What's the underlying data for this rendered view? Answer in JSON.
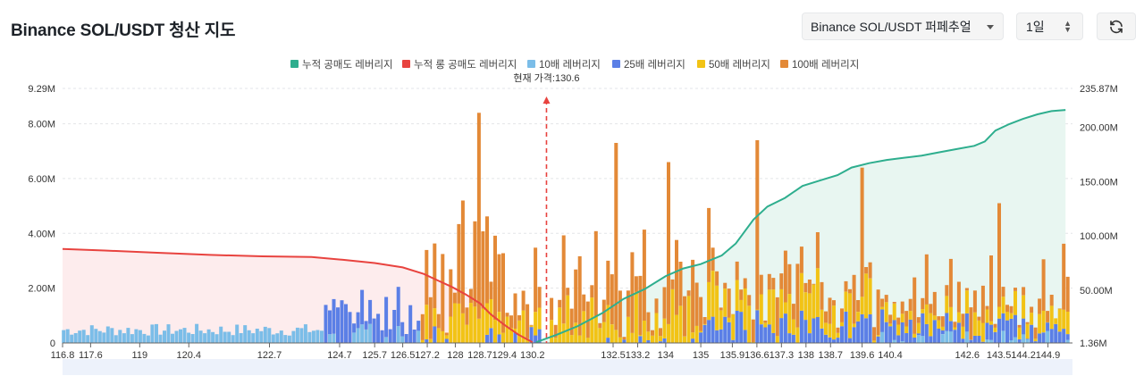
{
  "header": {
    "title": "Binance SOL/USDT 청산 지도",
    "pair_select": "Binance SOL/USDT 퍼페추얼",
    "range_select": "1일",
    "refresh_icon": "refresh-icon"
  },
  "colors": {
    "short_cum": "#2eae8e",
    "long_cum": "#e8433f",
    "lev10": "#7bbde8",
    "lev25": "#5b7fe6",
    "lev50": "#f2c315",
    "lev100": "#e38937",
    "short_area": "#e8f6f1",
    "long_area": "#fdeced"
  },
  "chart_data": {
    "type": "bar",
    "title": "Binance SOL/USDT 청산 지도",
    "legend": [
      {
        "key": "short_cum",
        "label": "누적 공매도 레버리지"
      },
      {
        "key": "long_cum",
        "label": "누적 롱 공매도 레버리지"
      },
      {
        "key": "lev10",
        "label": "10배 레버리지"
      },
      {
        "key": "lev25",
        "label": "25배 레버리지"
      },
      {
        "key": "lev50",
        "label": "50배 레버리지"
      },
      {
        "key": "lev100",
        "label": "100배 레버리지"
      }
    ],
    "current_price_label": "현재 가격:130.6",
    "current_price": 130.6,
    "left_axis": {
      "ylim": [
        0,
        9.29
      ],
      "unit": "M",
      "ticks": [
        {
          "v": 0,
          "label": "0"
        },
        {
          "v": 2,
          "label": "2.00M"
        },
        {
          "v": 4,
          "label": "4.00M"
        },
        {
          "v": 6,
          "label": "6.00M"
        },
        {
          "v": 8,
          "label": "8.00M"
        },
        {
          "v": 9.29,
          "label": "9.29M"
        }
      ]
    },
    "right_axis": {
      "ylim": [
        1.36,
        235.87
      ],
      "unit": "M",
      "ticks": [
        {
          "v": 1.36,
          "label": "1.36M"
        },
        {
          "v": 50,
          "label": "50.00M"
        },
        {
          "v": 100,
          "label": "100.00M"
        },
        {
          "v": 150,
          "label": "150.00M"
        },
        {
          "v": 200,
          "label": "200.00M"
        },
        {
          "v": 235.87,
          "label": "235.87M"
        }
      ]
    },
    "x_range": [
      116.8,
      145.6
    ],
    "x_ticks": [
      "116.8",
      "117.6",
      "119",
      "120.4",
      "122.7",
      "124.7",
      "125.7",
      "126.5",
      "127.2",
      "128",
      "128.7",
      "129.4",
      "130.2",
      "132.5",
      "133.2",
      "134",
      "135",
      "135.9",
      "136.6",
      "137.3",
      "138",
      "138.7",
      "139.6",
      "140.4",
      "142.6",
      "143.5",
      "144.2",
      "144.9"
    ],
    "long_cumulative": [
      [
        116.8,
        88
      ],
      [
        118,
        86.5
      ],
      [
        119.5,
        84.5
      ],
      [
        121,
        82.5
      ],
      [
        122.5,
        81.2
      ],
      [
        123.9,
        80.5
      ],
      [
        124.8,
        78
      ],
      [
        125.7,
        75
      ],
      [
        126.5,
        71
      ],
      [
        127.1,
        65
      ],
      [
        127.5,
        59
      ],
      [
        127.9,
        53
      ],
      [
        128.3,
        46
      ],
      [
        128.7,
        38
      ],
      [
        129.0,
        28
      ],
      [
        129.4,
        18
      ],
      [
        129.8,
        9
      ],
      [
        130.2,
        2
      ]
    ],
    "short_cumulative": [
      [
        130.3,
        2
      ],
      [
        130.9,
        9
      ],
      [
        131.5,
        17
      ],
      [
        132.2,
        29
      ],
      [
        132.8,
        42
      ],
      [
        133.4,
        51
      ],
      [
        134.0,
        63
      ],
      [
        134.5,
        70
      ],
      [
        135.0,
        74
      ],
      [
        135.6,
        82
      ],
      [
        136.0,
        93
      ],
      [
        136.5,
        115
      ],
      [
        136.9,
        127
      ],
      [
        137.4,
        135
      ],
      [
        137.9,
        146
      ],
      [
        138.4,
        151
      ],
      [
        138.9,
        156
      ],
      [
        139.3,
        163
      ],
      [
        139.8,
        167
      ],
      [
        140.3,
        170
      ],
      [
        140.8,
        172
      ],
      [
        141.3,
        174
      ],
      [
        141.8,
        177
      ],
      [
        142.3,
        180
      ],
      [
        142.8,
        183
      ],
      [
        143.1,
        187
      ],
      [
        143.4,
        197
      ],
      [
        143.8,
        203
      ],
      [
        144.2,
        208
      ],
      [
        144.6,
        212
      ],
      [
        145.0,
        215
      ],
      [
        145.4,
        216
      ]
    ],
    "notable_bars": [
      {
        "x": 128.7,
        "total_m": 8.4,
        "dominant": "100x"
      },
      {
        "x": 132.5,
        "total_m": 7.3,
        "dominant": "100x"
      },
      {
        "x": 134,
        "total_m": 6.6,
        "dominant": "100x"
      },
      {
        "x": 136.6,
        "total_m": 7.4,
        "dominant": "100x"
      },
      {
        "x": 139.6,
        "total_m": 6.4,
        "dominant": "100x"
      },
      {
        "x": 128.2,
        "total_m": 5.2,
        "dominant": "100x"
      },
      {
        "x": 143.5,
        "total_m": 5.1,
        "dominant": "100x"
      }
    ]
  }
}
